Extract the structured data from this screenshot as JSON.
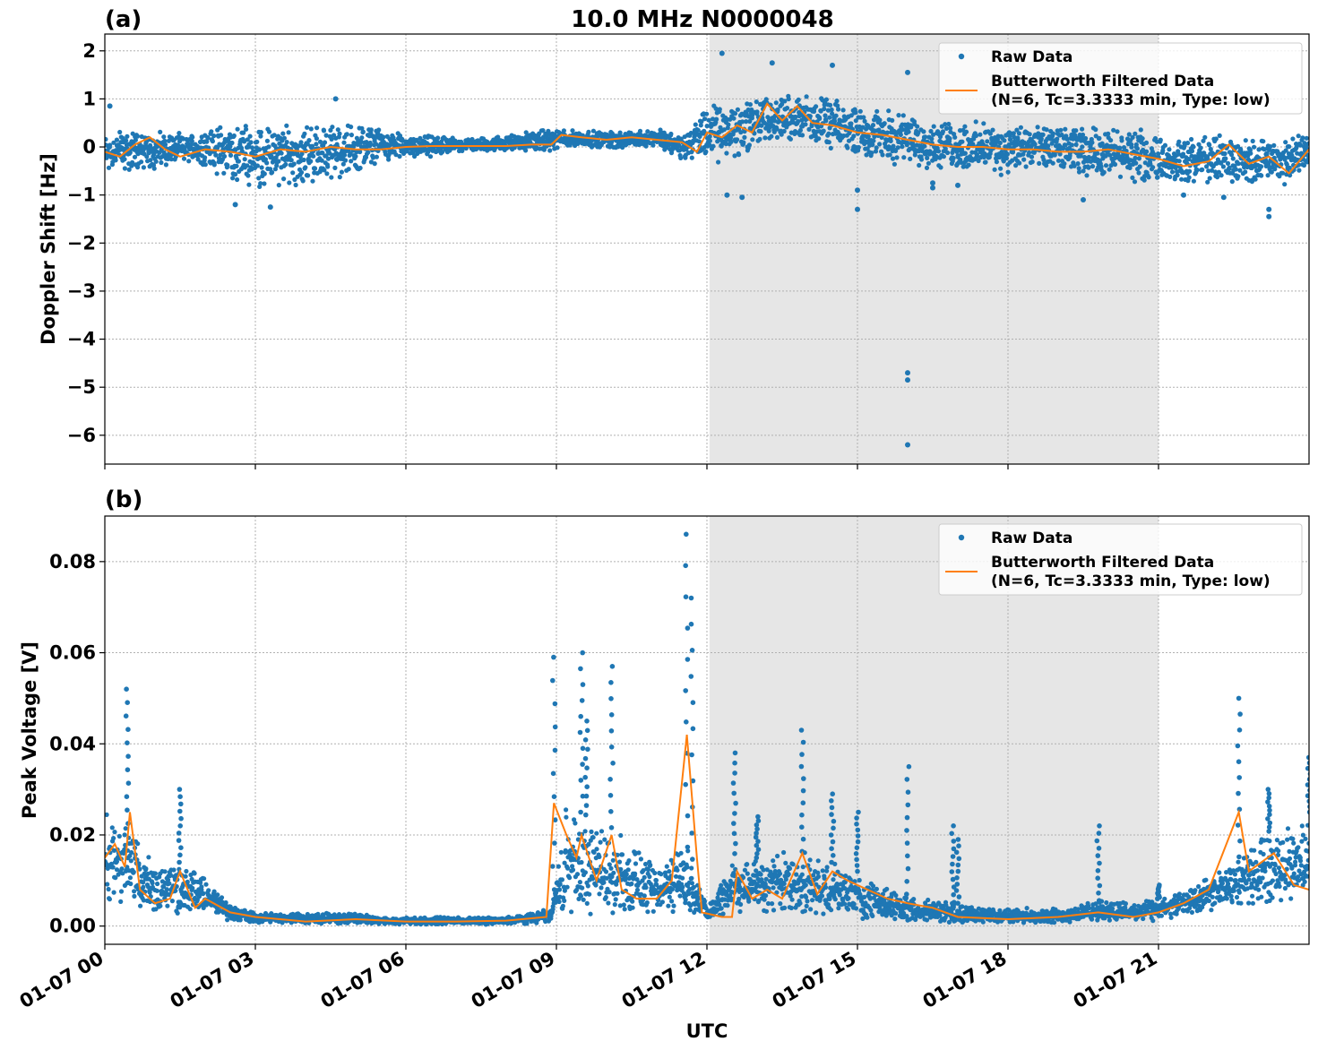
{
  "figure": {
    "title": "10.0 MHz N0000048",
    "xlabel": "UTC"
  },
  "colors": {
    "raw": "#1f77b4",
    "filtered": "#ff7f0e",
    "shade": "#e6e6e6",
    "grid": "#b0b0b0"
  },
  "chart_data": [
    {
      "type": "scatter",
      "panel_label": "(a)",
      "ylabel": "Doppler Shift [Hz]",
      "xlim": [
        0,
        24
      ],
      "ylim": [
        -6.6,
        2.35
      ],
      "x_unit": "hours UTC on 01-07",
      "x_ticks": [
        0,
        3,
        6,
        9,
        12,
        15,
        18,
        21
      ],
      "x_tick_labels": [
        "01-07 00",
        "01-07 03",
        "01-07 06",
        "01-07 09",
        "01-07 12",
        "01-07 15",
        "01-07 18",
        "01-07 21"
      ],
      "y_ticks": [
        2,
        1,
        0,
        -1,
        -2,
        -3,
        -4,
        -5,
        -6
      ],
      "y_tick_labels": [
        "2",
        "1",
        "0",
        "−1",
        "−2",
        "−3",
        "−4",
        "−5",
        "−6"
      ],
      "grid": true,
      "shaded_interval": [
        12.05,
        21.0
      ],
      "legend": {
        "placement": "upper right",
        "entries": [
          {
            "label": "Raw Data",
            "marker": "dot"
          },
          {
            "label": "Butterworth Filtered Data",
            "label2": "(N=6, Tc=3.3333 min, Type: low)",
            "marker": "line"
          }
        ]
      },
      "series": [
        {
          "name": "Raw Data",
          "style": "scatter",
          "spread_envelope": {
            "x": [
              0,
              0.5,
              1,
              1.5,
              2,
              2.5,
              3,
              3.5,
              4,
              4.5,
              5,
              5.5,
              6,
              6.5,
              7,
              7.5,
              8,
              8.5,
              9,
              9.5,
              10,
              10.5,
              11,
              11.5,
              12,
              12.5,
              13,
              13.5,
              14,
              14.5,
              15,
              15.5,
              16,
              16.5,
              17,
              17.5,
              18,
              18.5,
              19,
              19.5,
              20,
              20.5,
              21,
              21.5,
              22,
              22.5,
              23,
              23.5,
              24
            ],
            "upper": [
              0.35,
              0.45,
              0.35,
              0.3,
              0.35,
              0.6,
              0.55,
              0.5,
              0.55,
              0.5,
              0.55,
              0.4,
              0.25,
              0.25,
              0.2,
              0.2,
              0.25,
              0.35,
              0.4,
              0.35,
              0.35,
              0.35,
              0.4,
              0.3,
              0.9,
              1.0,
              1.2,
              1.1,
              1.15,
              1.0,
              0.9,
              0.8,
              0.75,
              0.6,
              0.55,
              0.55,
              0.5,
              0.5,
              0.45,
              0.45,
              0.45,
              0.4,
              0.3,
              0.2,
              0.3,
              0.25,
              0.2,
              0.2,
              0.4
            ],
            "lower": [
              -0.6,
              -0.55,
              -0.5,
              -0.35,
              -0.4,
              -0.8,
              -0.9,
              -0.9,
              -0.85,
              -0.7,
              -0.6,
              -0.3,
              -0.25,
              -0.25,
              -0.1,
              -0.1,
              -0.1,
              -0.1,
              -0.1,
              0.0,
              -0.05,
              -0.05,
              0.0,
              -0.3,
              -0.35,
              -0.4,
              -0.1,
              0.05,
              0.1,
              -0.1,
              -0.2,
              -0.3,
              -0.45,
              -0.5,
              -0.55,
              -0.6,
              -0.6,
              -0.55,
              -0.55,
              -0.6,
              -0.7,
              -0.75,
              -0.8,
              -0.85,
              -0.8,
              -0.85,
              -0.75,
              -0.85,
              -0.5
            ]
          },
          "outliers": [
            [
              0.1,
              0.85
            ],
            [
              2.6,
              -1.2
            ],
            [
              3.3,
              -1.25
            ],
            [
              4.6,
              1.0
            ],
            [
              12.3,
              1.95
            ],
            [
              12.4,
              -1.0
            ],
            [
              12.7,
              -1.05
            ],
            [
              13.3,
              1.75
            ],
            [
              14.5,
              1.7
            ],
            [
              15.0,
              -1.3
            ],
            [
              15.0,
              -0.9
            ],
            [
              16.0,
              1.55
            ],
            [
              16.0,
              -4.7
            ],
            [
              16.0,
              -4.85
            ],
            [
              16.0,
              -6.2
            ],
            [
              16.5,
              -0.75
            ],
            [
              16.5,
              -0.85
            ],
            [
              17.0,
              -0.8
            ],
            [
              19.5,
              -1.1
            ],
            [
              21.5,
              -1.0
            ],
            [
              22.3,
              -1.05
            ],
            [
              23.2,
              -1.3
            ],
            [
              23.2,
              -1.45
            ]
          ]
        },
        {
          "name": "Butterworth Filtered Data",
          "style": "line",
          "x": [
            0,
            0.3,
            0.6,
            0.9,
            1.2,
            1.5,
            2,
            2.5,
            3,
            3.5,
            4,
            4.5,
            5,
            5.5,
            6,
            6.5,
            7,
            7.5,
            8,
            8.5,
            8.9,
            9.1,
            9.5,
            10,
            10.5,
            11,
            11.5,
            11.8,
            12,
            12.3,
            12.6,
            12.9,
            13.2,
            13.5,
            13.8,
            14.1,
            14.5,
            15,
            15.5,
            16,
            16.5,
            17,
            17.5,
            18,
            18.5,
            19,
            19.5,
            20,
            20.5,
            21,
            21.5,
            22,
            22.4,
            22.8,
            23.2,
            23.6,
            24
          ],
          "y": [
            -0.1,
            -0.2,
            0.05,
            0.2,
            -0.05,
            -0.2,
            -0.05,
            -0.1,
            -0.2,
            -0.05,
            -0.1,
            0.0,
            -0.05,
            -0.05,
            0.0,
            0.02,
            0.02,
            0.02,
            0.02,
            0.05,
            0.05,
            0.25,
            0.2,
            0.15,
            0.2,
            0.15,
            0.1,
            -0.1,
            0.3,
            0.2,
            0.45,
            0.3,
            0.9,
            0.55,
            0.85,
            0.5,
            0.45,
            0.3,
            0.25,
            0.15,
            0.05,
            0.0,
            0.0,
            -0.05,
            -0.05,
            -0.1,
            -0.1,
            -0.05,
            -0.15,
            -0.25,
            -0.4,
            -0.3,
            0.05,
            -0.35,
            -0.2,
            -0.55,
            -0.05
          ]
        }
      ]
    },
    {
      "type": "scatter",
      "panel_label": "(b)",
      "ylabel": "Peak Voltage [V]",
      "xlim": [
        0,
        24
      ],
      "ylim": [
        -0.004,
        0.09
      ],
      "x_unit": "hours UTC on 01-07",
      "x_ticks": [
        0,
        3,
        6,
        9,
        12,
        15,
        18,
        21
      ],
      "x_tick_labels": [
        "01-07 00",
        "01-07 03",
        "01-07 06",
        "01-07 09",
        "01-07 12",
        "01-07 15",
        "01-07 18",
        "01-07 21"
      ],
      "y_ticks": [
        0.08,
        0.06,
        0.04,
        0.02,
        0.0
      ],
      "y_tick_labels": [
        "0.08",
        "0.06",
        "0.04",
        "0.02",
        "0.00"
      ],
      "grid": true,
      "shaded_interval": [
        12.05,
        21.0
      ],
      "legend": {
        "placement": "upper right",
        "entries": [
          {
            "label": "Raw Data",
            "marker": "dot"
          },
          {
            "label": "Butterworth Filtered Data",
            "label2": "(N=6, Tc=3.3333 min, Type: low)",
            "marker": "line"
          }
        ]
      },
      "series": [
        {
          "name": "Raw Data",
          "style": "scatter",
          "spread_envelope": {
            "x": [
              0,
              0.5,
              1,
              1.5,
              2,
              2.5,
              3,
              3.5,
              4,
              4.5,
              5,
              5.5,
              6,
              6.5,
              7,
              7.5,
              8,
              8.5,
              8.9,
              9.2,
              9.5,
              10,
              10.5,
              11,
              11.5,
              11.8,
              12,
              12.5,
              13,
              13.5,
              14,
              14.5,
              15,
              15.5,
              16,
              16.5,
              17,
              17.5,
              18,
              18.5,
              19,
              19.5,
              20,
              20.5,
              21,
              21.5,
              22,
              22.5,
              23,
              23.5,
              24
            ],
            "upper": [
              0.027,
              0.022,
              0.015,
              0.014,
              0.011,
              0.005,
              0.003,
              0.003,
              0.003,
              0.003,
              0.003,
              0.002,
              0.002,
              0.002,
              0.002,
              0.002,
              0.002,
              0.003,
              0.004,
              0.028,
              0.025,
              0.022,
              0.02,
              0.012,
              0.02,
              0.012,
              0.004,
              0.016,
              0.015,
              0.018,
              0.016,
              0.014,
              0.012,
              0.009,
              0.007,
              0.006,
              0.005,
              0.004,
              0.004,
              0.004,
              0.004,
              0.005,
              0.006,
              0.005,
              0.006,
              0.008,
              0.011,
              0.014,
              0.02,
              0.022,
              0.025
            ],
            "lower": [
              0.004,
              0.003,
              0.002,
              0.002,
              0.002,
              0.001,
              0.0005,
              0.0005,
              0.0005,
              0.0005,
              0.0005,
              0.0004,
              0.0003,
              0.0003,
              0.0003,
              0.0003,
              0.0003,
              0.0005,
              0.0008,
              0.002,
              0.002,
              0.002,
              0.002,
              0.002,
              0.002,
              0.002,
              0.001,
              0.002,
              0.002,
              0.002,
              0.002,
              0.002,
              0.001,
              0.001,
              0.0008,
              0.0006,
              0.0005,
              0.0005,
              0.0005,
              0.0005,
              0.0006,
              0.0008,
              0.001,
              0.001,
              0.001,
              0.002,
              0.003,
              0.004,
              0.004,
              0.005,
              0.005
            ]
          },
          "spikes": [
            [
              0.45,
              0.052
            ],
            [
              1.5,
              0.03
            ],
            [
              8.95,
              0.059
            ],
            [
              9.5,
              0.06
            ],
            [
              9.6,
              0.045
            ],
            [
              10.1,
              0.057
            ],
            [
              11.6,
              0.086
            ],
            [
              11.7,
              0.072
            ],
            [
              12.55,
              0.038
            ],
            [
              13.0,
              0.024
            ],
            [
              13.9,
              0.043
            ],
            [
              14.5,
              0.029
            ],
            [
              15.0,
              0.025
            ],
            [
              16.0,
              0.035
            ],
            [
              16.9,
              0.022
            ],
            [
              17.0,
              0.019
            ],
            [
              19.8,
              0.022
            ],
            [
              21.0,
              0.009
            ],
            [
              22.6,
              0.05
            ],
            [
              23.2,
              0.03
            ],
            [
              24.0,
              0.037
            ]
          ]
        },
        {
          "name": "Butterworth Filtered Data",
          "style": "line",
          "x": [
            0,
            0.2,
            0.4,
            0.5,
            0.7,
            1.0,
            1.3,
            1.5,
            1.8,
            2.0,
            2.5,
            3.0,
            4.0,
            5.0,
            6.0,
            7.0,
            8.0,
            8.8,
            8.95,
            9.2,
            9.4,
            9.5,
            9.8,
            10.1,
            10.3,
            10.6,
            11.0,
            11.3,
            11.6,
            11.8,
            11.9,
            12.3,
            12.5,
            12.6,
            12.9,
            13.2,
            13.5,
            13.9,
            14.2,
            14.5,
            14.8,
            15.2,
            15.6,
            16.0,
            16.5,
            17.0,
            18.0,
            19.0,
            19.8,
            20.5,
            21.0,
            21.5,
            22.0,
            22.6,
            22.8,
            23.3,
            23.7,
            24.0
          ],
          "y": [
            0.015,
            0.018,
            0.013,
            0.025,
            0.008,
            0.005,
            0.006,
            0.012,
            0.004,
            0.006,
            0.003,
            0.002,
            0.001,
            0.0015,
            0.001,
            0.001,
            0.0012,
            0.002,
            0.027,
            0.02,
            0.015,
            0.02,
            0.01,
            0.02,
            0.008,
            0.006,
            0.006,
            0.01,
            0.042,
            0.015,
            0.003,
            0.002,
            0.002,
            0.012,
            0.006,
            0.008,
            0.006,
            0.016,
            0.007,
            0.012,
            0.01,
            0.008,
            0.006,
            0.005,
            0.004,
            0.002,
            0.0015,
            0.002,
            0.003,
            0.002,
            0.003,
            0.005,
            0.008,
            0.025,
            0.012,
            0.016,
            0.009,
            0.008
          ]
        }
      ]
    }
  ]
}
